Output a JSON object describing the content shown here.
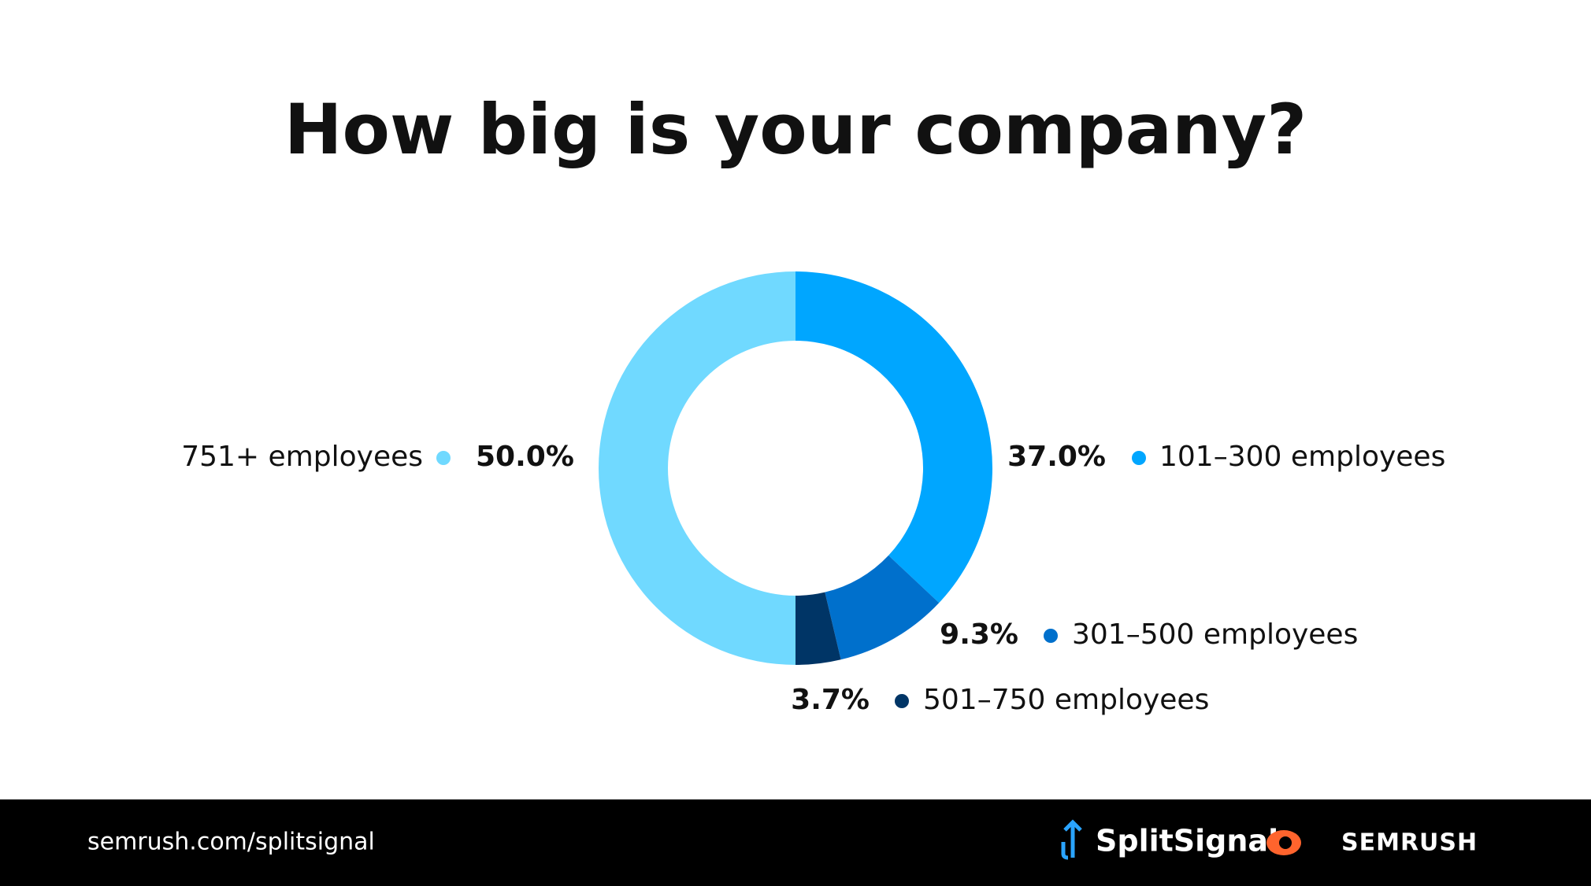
{
  "chart_data": {
    "type": "donut",
    "title": "How big is your company?",
    "categories": [
      "101–300 employees",
      "301–500 employees",
      "501–750 employees",
      "751+ employees"
    ],
    "values": [
      37.0,
      9.3,
      3.7,
      50.0
    ],
    "value_labels": [
      "37.0%",
      "9.3%",
      "3.7%",
      "50.0%"
    ],
    "colors": [
      "#00a6ff",
      "#0070cc",
      "#003566",
      "#70d9ff"
    ]
  },
  "footer": {
    "url": "semrush.com/splitsignal",
    "brand_1": "SplitSignal",
    "brand_2": "SEMRUSH"
  }
}
